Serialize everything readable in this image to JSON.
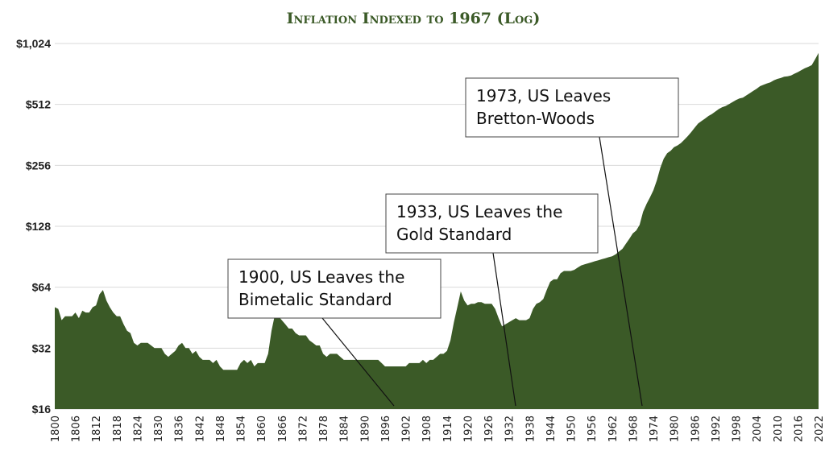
{
  "chart_data": {
    "type": "area",
    "title": "Inflation Indexed to 1967 (Log)",
    "y_scale": "log2",
    "ylim": [
      16,
      1024
    ],
    "y_ticks": [
      16,
      32,
      64,
      128,
      256,
      512,
      1024
    ],
    "y_tick_labels": [
      "$16",
      "$32",
      "$64",
      "$128",
      "$256",
      "$512",
      "$1,024"
    ],
    "xlim": [
      1800,
      2022
    ],
    "x_tick_labels": [
      "1800",
      "1806",
      "1812",
      "1818",
      "1824",
      "1830",
      "1836",
      "1842",
      "1848",
      "1854",
      "1860",
      "1866",
      "1872",
      "1878",
      "1884",
      "1890",
      "1896",
      "1902",
      "1908",
      "1914",
      "1920",
      "1926",
      "1932",
      "1938",
      "1944",
      "1950",
      "1956",
      "1962",
      "1968",
      "1974",
      "1980",
      "1986",
      "1992",
      "1998",
      "2004",
      "2010",
      "2016",
      "2022"
    ],
    "grid": true,
    "legend": "none",
    "colors": {
      "area": "#3b5a27",
      "title": "#3b5a27"
    },
    "series": [
      {
        "x": [
          1800,
          1801,
          1802,
          1803,
          1804,
          1805,
          1806,
          1807,
          1808,
          1809,
          1810,
          1811,
          1812,
          1813,
          1814,
          1815,
          1816,
          1817,
          1818,
          1819,
          1820,
          1821,
          1822,
          1823,
          1824,
          1825,
          1826,
          1827,
          1828,
          1829,
          1830,
          1831,
          1832,
          1833,
          1834,
          1835,
          1836,
          1837,
          1838,
          1839,
          1840,
          1841,
          1842,
          1843,
          1844,
          1845,
          1846,
          1847,
          1848,
          1849,
          1850,
          1851,
          1852,
          1853,
          1854,
          1855,
          1856,
          1857,
          1858,
          1859,
          1860,
          1861,
          1862,
          1863,
          1864,
          1865,
          1866,
          1867,
          1868,
          1869,
          1870,
          1871,
          1872,
          1873,
          1874,
          1875,
          1876,
          1877,
          1878,
          1879,
          1880,
          1881,
          1882,
          1883,
          1884,
          1885,
          1886,
          1887,
          1888,
          1889,
          1890,
          1891,
          1892,
          1893,
          1894,
          1895,
          1896,
          1897,
          1898,
          1899,
          1900,
          1901,
          1902,
          1903,
          1904,
          1905,
          1906,
          1907,
          1908,
          1909,
          1910,
          1911,
          1912,
          1913,
          1914,
          1915,
          1916,
          1917,
          1918,
          1919,
          1920,
          1921,
          1922,
          1923,
          1924,
          1925,
          1926,
          1927,
          1928,
          1929,
          1930,
          1931,
          1932,
          1933,
          1934,
          1935,
          1936,
          1937,
          1938,
          1939,
          1940,
          1941,
          1942,
          1943,
          1944,
          1945,
          1946,
          1947,
          1948,
          1949,
          1950,
          1951,
          1952,
          1953,
          1954,
          1955,
          1956,
          1957,
          1958,
          1959,
          1960,
          1961,
          1962,
          1963,
          1964,
          1965,
          1966,
          1967,
          1968,
          1969,
          1970,
          1971,
          1972,
          1973,
          1974,
          1975,
          1976,
          1977,
          1978,
          1979,
          1980,
          1981,
          1982,
          1983,
          1984,
          1985,
          1986,
          1987,
          1988,
          1989,
          1990,
          1991,
          1992,
          1993,
          1994,
          1995,
          1996,
          1997,
          1998,
          1999,
          2000,
          2001,
          2002,
          2003,
          2004,
          2005,
          2006,
          2007,
          2008,
          2009,
          2010,
          2011,
          2012,
          2013,
          2014,
          2015,
          2016,
          2017,
          2018,
          2019,
          2020,
          2021,
          2022
        ],
        "y": [
          51,
          50,
          44,
          46,
          46,
          46,
          48,
          45,
          49,
          48,
          48,
          51,
          52,
          59,
          62,
          55,
          51,
          48,
          46,
          46,
          42,
          39,
          38,
          34,
          33,
          34,
          34,
          34,
          33,
          32,
          32,
          32,
          30,
          29,
          30,
          31,
          33,
          34,
          32,
          32,
          30,
          31,
          29,
          28,
          28,
          28,
          27,
          28,
          26,
          25,
          25,
          25,
          25,
          25,
          27,
          28,
          27,
          28,
          26,
          27,
          27,
          27,
          30,
          39,
          47,
          46,
          44,
          42,
          40,
          40,
          38,
          37,
          37,
          37,
          35,
          34,
          33,
          33,
          30,
          29,
          30,
          30,
          30,
          29,
          28,
          28,
          28,
          28,
          28,
          28,
          28,
          28,
          28,
          28,
          28,
          27,
          26,
          26,
          26,
          26,
          26,
          26,
          26,
          27,
          27,
          27,
          27,
          28,
          27,
          28,
          28,
          29,
          30,
          30,
          31,
          35,
          43,
          51,
          61,
          55,
          52,
          53,
          53,
          54,
          54,
          53,
          53,
          53,
          50,
          45,
          41,
          42,
          43,
          44,
          45,
          44,
          44,
          44,
          45,
          50,
          53,
          54,
          56,
          62,
          68,
          70,
          70,
          75,
          77,
          77,
          77,
          78,
          80,
          82,
          83,
          84,
          85,
          86,
          87,
          88,
          89,
          90,
          91,
          93,
          96,
          99,
          105,
          111,
          118,
          122,
          130,
          151,
          165,
          178,
          193,
          216,
          249,
          276,
          294,
          302,
          315,
          321,
          330,
          343,
          357,
          374,
          393,
          412,
          424,
          436,
          449,
          459,
          472,
          486,
          496,
          503,
          514,
          526,
          538,
          548,
          553,
          567,
          582,
          597,
          612,
          630,
          640,
          650,
          658,
          673,
          684,
          691,
          702,
          705,
          712,
          726,
          740,
          756,
          773,
          785,
          800,
          856,
          920
        ]
      }
    ],
    "annotations": [
      {
        "lines": [
          "1900, US Leaves the",
          "Bimetalic Standard"
        ],
        "year": 1900
      },
      {
        "lines": [
          "1933, US Leaves the",
          "Gold Standard"
        ],
        "year": 1933
      },
      {
        "lines": [
          "1973, US Leaves",
          "Bretton-Woods"
        ],
        "year": 1973
      }
    ]
  }
}
